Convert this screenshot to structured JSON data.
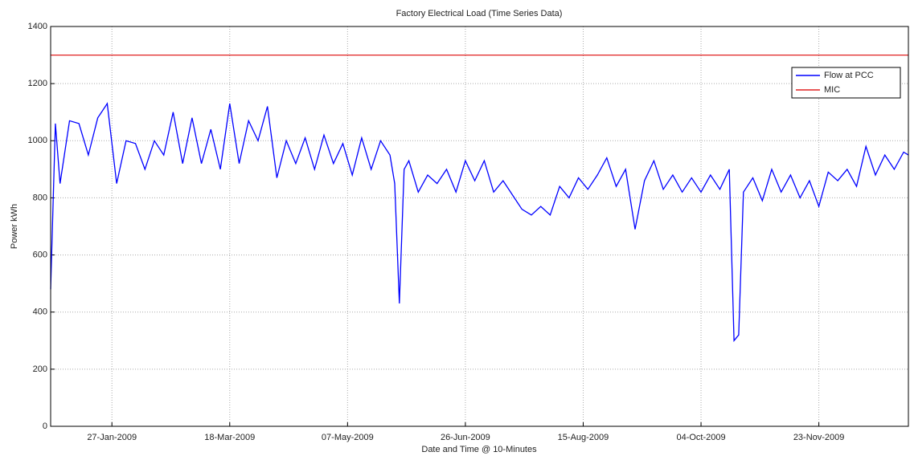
{
  "chart_data": {
    "type": "line",
    "title": "Factory Electrical Load (Time Series Data)",
    "x_label": "Date and Time @ 10-Minutes",
    "y_label": "Power kWh",
    "xlim": [
      "2009-01-01",
      "2009-12-31"
    ],
    "xticks": [
      {
        "value": "2009-01-27",
        "label": "27-Jan-2009"
      },
      {
        "value": "2009-03-18",
        "label": "18-Mar-2009"
      },
      {
        "value": "2009-05-07",
        "label": "07-May-2009"
      },
      {
        "value": "2009-06-26",
        "label": "26-Jun-2009"
      },
      {
        "value": "2009-08-15",
        "label": "15-Aug-2009"
      },
      {
        "value": "2009-10-04",
        "label": "04-Oct-2009"
      },
      {
        "value": "2009-11-23",
        "label": "23-Nov-2009"
      }
    ],
    "ylim": [
      0,
      1400
    ],
    "yticks": [
      0,
      200,
      400,
      600,
      800,
      1000,
      1200,
      1400
    ],
    "grid": true,
    "legend": "upper right",
    "series": [
      {
        "name": "Flow at PCC",
        "color": "#0000ff",
        "x": [
          "2009-01-01",
          "2009-01-03",
          "2009-01-05",
          "2009-01-09",
          "2009-01-13",
          "2009-01-17",
          "2009-01-21",
          "2009-01-25",
          "2009-01-29",
          "2009-02-02",
          "2009-02-06",
          "2009-02-10",
          "2009-02-14",
          "2009-02-18",
          "2009-02-22",
          "2009-02-26",
          "2009-03-02",
          "2009-03-06",
          "2009-03-10",
          "2009-03-14",
          "2009-03-18",
          "2009-03-22",
          "2009-03-26",
          "2009-03-30",
          "2009-04-03",
          "2009-04-07",
          "2009-04-11",
          "2009-04-15",
          "2009-04-19",
          "2009-04-23",
          "2009-04-27",
          "2009-05-01",
          "2009-05-05",
          "2009-05-09",
          "2009-05-13",
          "2009-05-17",
          "2009-05-21",
          "2009-05-25",
          "2009-05-27",
          "2009-05-29",
          "2009-05-31",
          "2009-06-02",
          "2009-06-06",
          "2009-06-10",
          "2009-06-14",
          "2009-06-18",
          "2009-06-22",
          "2009-06-26",
          "2009-06-30",
          "2009-07-04",
          "2009-07-08",
          "2009-07-12",
          "2009-07-16",
          "2009-07-20",
          "2009-07-24",
          "2009-07-28",
          "2009-08-01",
          "2009-08-05",
          "2009-08-09",
          "2009-08-13",
          "2009-08-17",
          "2009-08-21",
          "2009-08-25",
          "2009-08-29",
          "2009-09-02",
          "2009-09-06",
          "2009-09-10",
          "2009-09-14",
          "2009-09-18",
          "2009-09-22",
          "2009-09-26",
          "2009-09-30",
          "2009-10-04",
          "2009-10-08",
          "2009-10-12",
          "2009-10-16",
          "2009-10-18",
          "2009-10-20",
          "2009-10-22",
          "2009-10-26",
          "2009-10-30",
          "2009-11-03",
          "2009-11-07",
          "2009-11-11",
          "2009-11-15",
          "2009-11-19",
          "2009-11-23",
          "2009-11-27",
          "2009-12-01",
          "2009-12-05",
          "2009-12-09",
          "2009-12-13",
          "2009-12-17",
          "2009-12-21",
          "2009-12-25",
          "2009-12-29",
          "2009-12-31"
        ],
        "values": [
          480,
          1060,
          850,
          1070,
          1060,
          950,
          1080,
          1130,
          850,
          1000,
          990,
          900,
          1000,
          950,
          1100,
          920,
          1080,
          920,
          1040,
          900,
          1130,
          920,
          1070,
          1000,
          1120,
          870,
          1000,
          920,
          1010,
          900,
          1020,
          920,
          990,
          880,
          1010,
          900,
          1000,
          950,
          850,
          430,
          900,
          930,
          820,
          880,
          850,
          900,
          820,
          930,
          860,
          930,
          820,
          860,
          810,
          760,
          740,
          770,
          740,
          840,
          800,
          870,
          830,
          880,
          940,
          840,
          900,
          690,
          860,
          930,
          830,
          880,
          820,
          870,
          820,
          880,
          830,
          900,
          300,
          320,
          820,
          870,
          790,
          900,
          820,
          880,
          800,
          860,
          770,
          890,
          860,
          900,
          840,
          980,
          880,
          950,
          900,
          960,
          950
        ]
      },
      {
        "name": "MIC",
        "color": "#e02020",
        "x": [
          "2009-01-01",
          "2009-12-31"
        ],
        "values": [
          1300,
          1300
        ]
      }
    ]
  }
}
